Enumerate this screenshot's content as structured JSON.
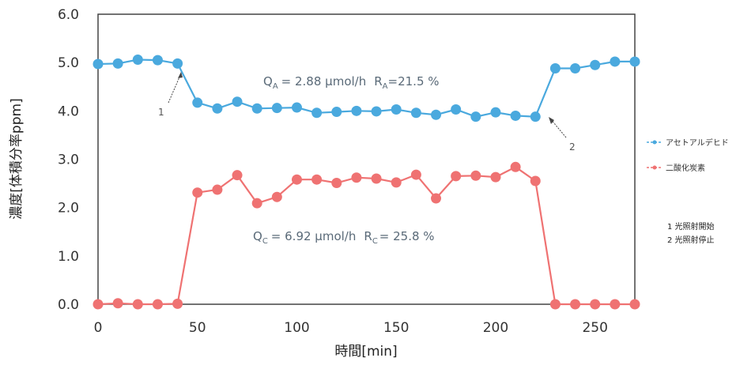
{
  "chart_data": {
    "type": "line",
    "title": "",
    "xlabel": "時間[min]",
    "ylabel": "濃度[体積分率ppm]",
    "xlim": [
      0,
      270
    ],
    "ylim": [
      0,
      6
    ],
    "x_ticks": [
      "0",
      "50",
      "100",
      "150",
      "200",
      "250"
    ],
    "y_ticks": [
      "0.0",
      "1.0",
      "2.0",
      "3.0",
      "4.0",
      "5.0",
      "6.0"
    ],
    "grid": false,
    "legend_position": "right",
    "x": [
      0,
      10,
      20,
      30,
      40,
      50,
      60,
      70,
      80,
      90,
      100,
      110,
      120,
      130,
      140,
      150,
      160,
      170,
      180,
      190,
      200,
      210,
      220,
      230,
      240,
      250,
      260,
      270
    ],
    "series": [
      {
        "name": "アセトアルデヒド",
        "color": "#4aa9de",
        "values": [
          4.97,
          4.98,
          5.06,
          5.05,
          4.98,
          4.17,
          4.05,
          4.19,
          4.05,
          4.06,
          4.07,
          3.96,
          3.98,
          4.0,
          3.99,
          4.03,
          3.96,
          3.92,
          4.03,
          3.88,
          3.97,
          3.9,
          3.88,
          4.88,
          4.88,
          4.95,
          5.02,
          5.02
        ]
      },
      {
        "name": "二酸化炭素",
        "color": "#ef7272",
        "values": [
          0.0,
          0.02,
          0.0,
          0.0,
          0.01,
          2.31,
          2.37,
          2.67,
          2.09,
          2.22,
          2.58,
          2.58,
          2.51,
          2.62,
          2.6,
          2.52,
          2.68,
          2.19,
          2.65,
          2.66,
          2.63,
          2.84,
          2.55,
          0.0,
          0.0,
          0.0,
          0.0,
          0.0
        ]
      }
    ],
    "annotations": {
      "acetaldehyde_main": "Q",
      "acetaldehyde_main_sub": "A",
      "acetaldehyde_main_value": "= 2.88 µmol/h",
      "acetaldehyde_r": "R",
      "acetaldehyde_r_sub": "A",
      "acetaldehyde_r_value": "=21.5 %",
      "co2_main": "Q",
      "co2_main_sub": "C",
      "co2_main_value": "= 6.92 µmol/h",
      "co2_r": "R",
      "co2_r_sub": "C",
      "co2_r_value": "= 25.8 %",
      "pointer_1_label": "1",
      "pointer_1_x": 40,
      "pointer_2_label": "2",
      "pointer_2_x": 220
    },
    "notes": [
      "1 光照射開始",
      "2 光照射停止"
    ]
  }
}
